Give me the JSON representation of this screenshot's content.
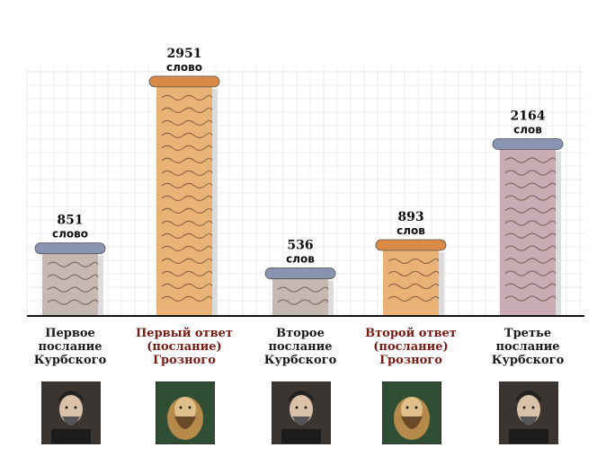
{
  "chart_data": {
    "type": "bar",
    "categories": [
      "Первое\nпослание\nКурбского",
      "Первый ответ\n(послание)\nГрозного",
      "Второе\nпослание\nКурбского",
      "Второй ответ\n(послание)\nГрозного",
      "Третье\nпослание\nКурбского"
    ],
    "values": [
      851,
      2951,
      536,
      893,
      2164
    ],
    "value_labels": [
      "851",
      "2951",
      "536",
      "893",
      "2164"
    ],
    "unit_labels": [
      "слово",
      "слово",
      "слов",
      "слов",
      "слов"
    ],
    "authors": [
      "Kurbsky",
      "Grozny",
      "Kurbsky",
      "Grozny",
      "Kurbsky"
    ],
    "colors": {
      "Kurbsky": "#c4b8b1",
      "Grozny": "#e9b276",
      "Kurbsky_last": "#c9acb3",
      "scroll": "#8a94b0",
      "scroll_grozny": "#d98a45",
      "axis": "#111111",
      "label_red": "#7a1a14"
    },
    "grid": true,
    "ylim": [
      0,
      3300
    ]
  }
}
